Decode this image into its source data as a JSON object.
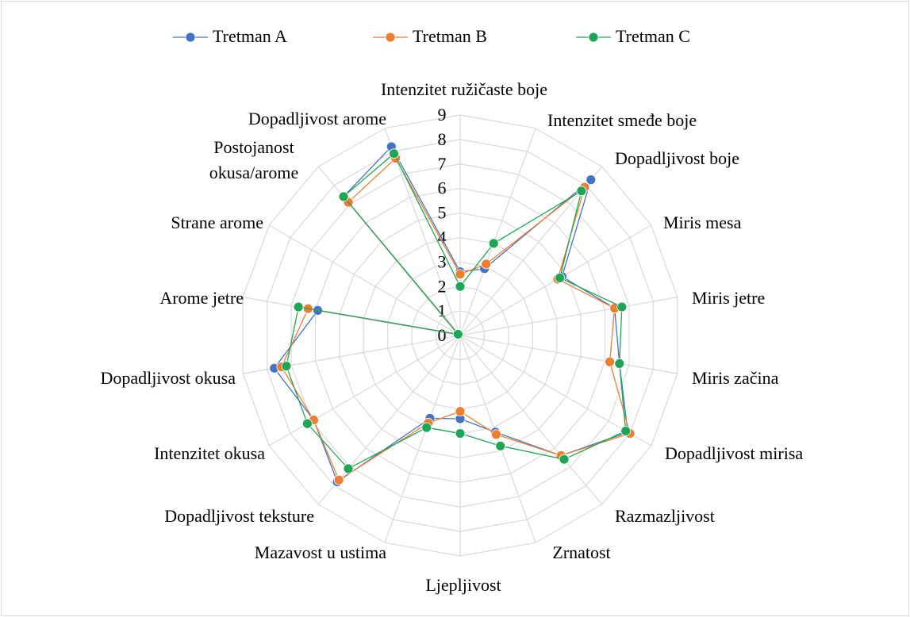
{
  "chart_data": {
    "type": "radar",
    "categories": [
      "Intenzitet ružičaste boje",
      "Intenzitet smeđe boje",
      "Dopadljivost boje",
      "Miris mesa",
      "Miris jetre",
      "Miris začina",
      "Dopadljivost mirisa",
      "Razmazljivost",
      "Zrnatost",
      "Ljepljivost",
      "Mazavost u ustima",
      "Dopadljivost teksture",
      "Intenzitet okusa",
      "Dopadljivost okusa",
      "Arome jetre",
      "Strane arome",
      "Postojanost okusa/arome",
      "Dopadljivost arome"
    ],
    "series": [
      {
        "name": "Tretman A",
        "color": "#4472c4",
        "values": [
          2.6,
          2.9,
          8.3,
          4.8,
          6.4,
          6.6,
          7.9,
          6.4,
          4.2,
          3.4,
          3.6,
          7.8,
          6.9,
          7.7,
          5.9,
          0.1,
          7.4,
          8.2
        ]
      },
      {
        "name": "Tretman B",
        "color": "#ed7d31",
        "values": [
          2.5,
          3.1,
          7.9,
          4.6,
          6.4,
          6.2,
          8.0,
          6.4,
          4.3,
          3.1,
          3.8,
          7.7,
          6.9,
          7.4,
          6.3,
          0.1,
          7.1,
          7.7
        ]
      },
      {
        "name": "Tretman C",
        "color": "#1fa655",
        "values": [
          2.0,
          4.0,
          7.7,
          4.7,
          6.7,
          6.6,
          7.8,
          6.6,
          4.8,
          4.0,
          4.0,
          7.1,
          7.2,
          7.2,
          6.7,
          0.1,
          7.4,
          7.9
        ]
      }
    ],
    "ylim": [
      0,
      9
    ],
    "yticks": [
      0,
      1,
      2,
      3,
      4,
      5,
      6,
      7,
      8,
      9
    ],
    "grid": true,
    "legend": "top"
  }
}
